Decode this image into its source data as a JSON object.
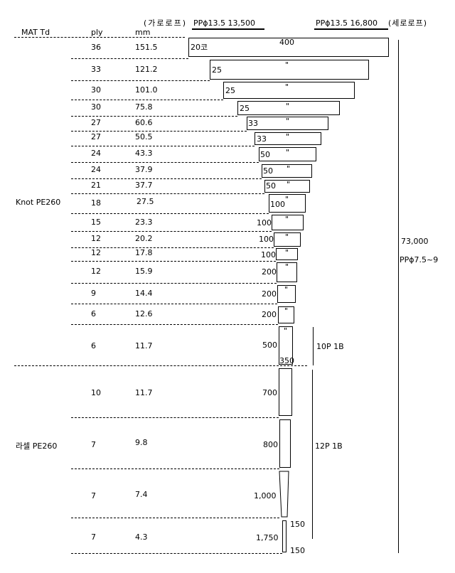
{
  "header": {
    "mat_td": "MAT Td",
    "ply": "ply",
    "mm": "mm",
    "garo_label": "(가로로프)",
    "garo_spec": "PPϕ13.5  13,500",
    "sero_spec": "PPϕ13.5  16,800",
    "sero_label": "(세로로프)"
  },
  "rows": [
    {
      "ply": "36",
      "mm": "151.5",
      "count": "20코",
      "label": "400"
    },
    {
      "ply": "33",
      "mm": "121.2",
      "count": "25",
      "label": "\""
    },
    {
      "ply": "30",
      "mm": "101.0",
      "count": "25",
      "label": "\""
    },
    {
      "ply": "30",
      "mm": "75.8",
      "count": "25",
      "label": "\""
    },
    {
      "ply": "27",
      "mm": "60.6",
      "count": "33",
      "label": "\""
    },
    {
      "ply": "27",
      "mm": "50.5",
      "count": "33",
      "label": "\""
    },
    {
      "ply": "24",
      "mm": "43.3",
      "count": "50",
      "label": "\""
    },
    {
      "ply": "24",
      "mm": "37.9",
      "count": "50",
      "label": "\""
    },
    {
      "ply": "21",
      "mm": "37.7",
      "count": "50",
      "label": "\""
    },
    {
      "ply": "18",
      "mm": "27.5",
      "count": "100",
      "label": "\""
    },
    {
      "ply": "15",
      "mm": "23.3",
      "count": "100",
      "label": "\""
    },
    {
      "ply": "12",
      "mm": "20.2",
      "count": "100",
      "label": "\""
    },
    {
      "ply": "12",
      "mm": "17.8",
      "count": "100",
      "label": "\""
    },
    {
      "ply": "12",
      "mm": "15.9",
      "count": "200",
      "label": "\""
    },
    {
      "ply": "9",
      "mm": "14.4",
      "count": "200",
      "label": "\""
    },
    {
      "ply": "6",
      "mm": "12.6",
      "count": "200",
      "label": "\""
    },
    {
      "ply": "6",
      "mm": "11.7",
      "count": "500",
      "label": "\"",
      "bottom": "350"
    },
    {
      "ply": "10",
      "mm": "11.7",
      "count": "700"
    },
    {
      "ply": "7",
      "mm": "9.8",
      "count": "800"
    },
    {
      "ply": "7",
      "mm": "7.4",
      "count": "1,000"
    },
    {
      "ply": "7",
      "mm": "4.3",
      "count": "1,750",
      "top": "150",
      "bottom": "150"
    }
  ],
  "groups": {
    "knot": "Knot PE260",
    "rasel": "라셀 PE260",
    "p10": "10P 1B",
    "p12": "12P 1B"
  },
  "side": {
    "total": "73,000",
    "rope": "PPϕ7.5~9"
  }
}
